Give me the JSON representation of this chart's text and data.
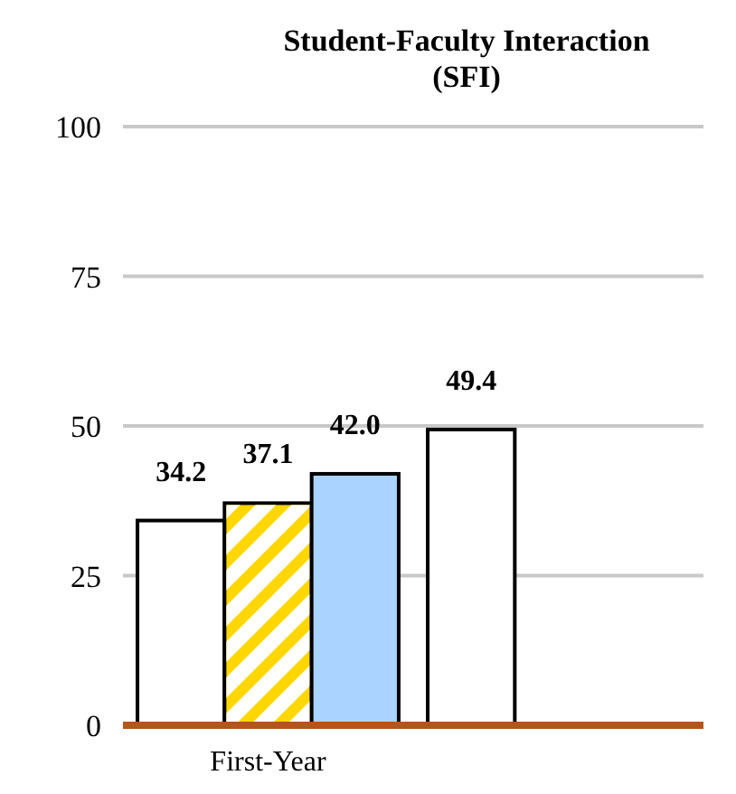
{
  "chart_data": {
    "type": "bar",
    "title": "Student-Faculty Interaction (SFI)",
    "categories": [
      "First-Year",
      null
    ],
    "series": [
      {
        "color": "#ffffff",
        "values": [
          34.2,
          49.4
        ],
        "value_labels": [
          "34.2",
          "49.4"
        ]
      },
      {
        "color": "#ffd700",
        "values": [
          37.1,
          null
        ],
        "value_labels": [
          "37.1",
          null
        ]
      },
      {
        "color": "#aad4ff",
        "values": [
          42.0,
          null
        ],
        "value_labels": [
          "42.0",
          null
        ]
      }
    ],
    "ylim": [
      0,
      100
    ],
    "yticks": [
      0,
      25,
      50,
      75,
      100
    ],
    "grid": "y"
  }
}
